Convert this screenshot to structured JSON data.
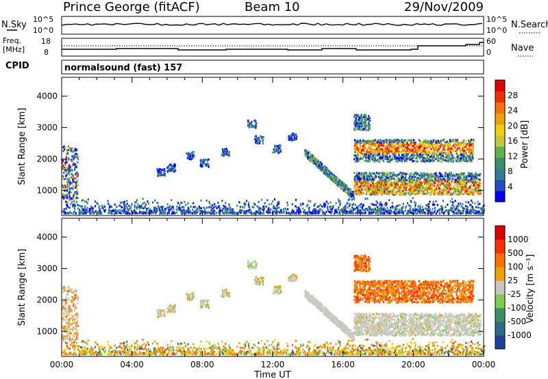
{
  "header": {
    "station": "Prince George (fitACF)",
    "beam": "Beam 10",
    "date": "29/Nov/2009"
  },
  "top_panels": {
    "nsky_label": "N.Sky",
    "nsky_ticks": [
      "10^5",
      "10^0"
    ],
    "nsearch_label": "N.Search",
    "nsearch_ticks": [
      "10^5",
      "10^0"
    ],
    "freq_label": "Freq.",
    "freq_unit": "[MHz]",
    "freq_ticks": [
      "18",
      "8"
    ],
    "nave_label": "Nave",
    "nave_ticks": [
      "60",
      "0"
    ],
    "cpid_label": "CPID",
    "cpid_value": "normalsound (fast) 157"
  },
  "chart_data": [
    {
      "type": "heatmap",
      "name": "power-panel",
      "ylabel": "Slant Range [km]",
      "xlabel": "",
      "colorbar_label": "Power [dB]",
      "ylim": [
        200,
        4600
      ],
      "yticks": [
        1000,
        2000,
        3000,
        4000
      ],
      "xlim": [
        0,
        24
      ],
      "colorbar_ticks": [
        "28",
        "24",
        "20",
        "16",
        "12",
        "8",
        "4"
      ],
      "colorbar_colors": [
        "#0000ff",
        "#1f4fbf",
        "#2e7d9a",
        "#3a8f64",
        "#5fb14a",
        "#c4c83a",
        "#f0d000",
        "#f0a000",
        "#ff7000",
        "#f03000",
        "#e00000"
      ]
    },
    {
      "type": "heatmap",
      "name": "velocity-panel",
      "ylabel": "Slant Range [km]",
      "xlabel": "Time UT",
      "colorbar_label": "Velocity [m s⁻¹]",
      "ylim": [
        200,
        4600
      ],
      "yticks": [
        1000,
        2000,
        3000,
        4000
      ],
      "xlim": [
        0,
        24
      ],
      "xticks": [
        "00:00",
        "04:00",
        "08:00",
        "12:00",
        "16:00",
        "20:00",
        "00:00"
      ],
      "colorbar_ticks": [
        "1000",
        "500",
        "100",
        "25",
        "-25",
        "-100",
        "-500",
        "-1000"
      ],
      "colorbar_colors": [
        "#1c3fa0",
        "#2e6a8a",
        "#3a8f64",
        "#7ad04a",
        "#c8c8c0",
        "#f0a000",
        "#ff7000",
        "#ff3000",
        "#e00000"
      ]
    }
  ]
}
